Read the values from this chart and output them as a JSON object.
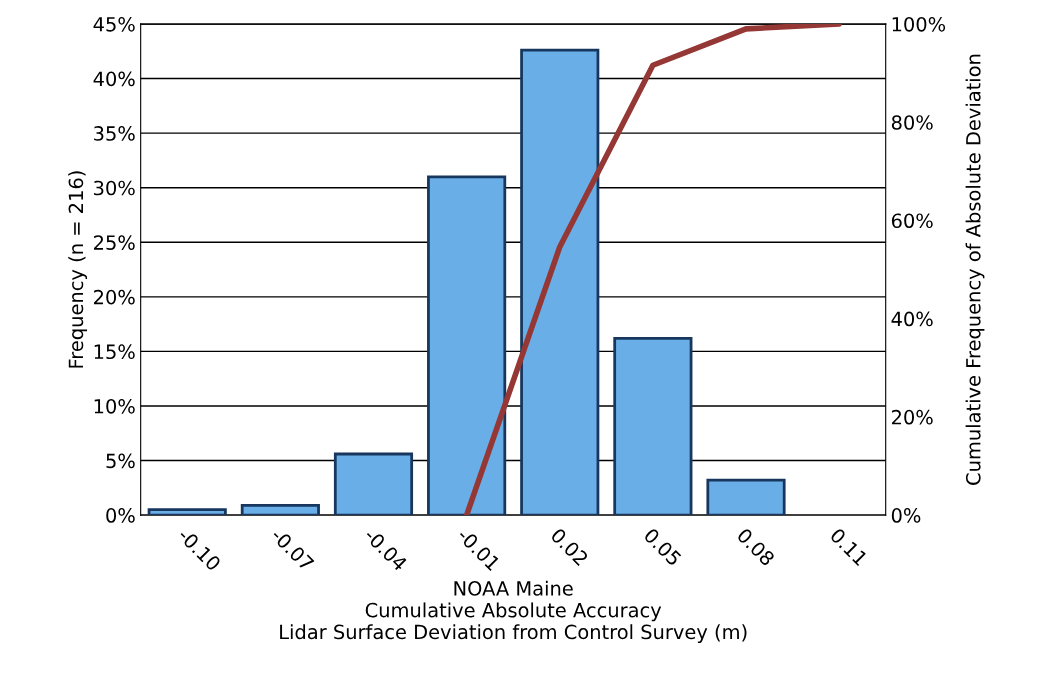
{
  "chart_data": {
    "type": "bar",
    "xlabel": "NOAA Maine\nCumulative Absolute Accuracy\nLidar Surface Deviation from Control Survey (m)",
    "ylabel": "Frequency (n = 216)",
    "y2label": "Cumulative Frequency of Absolute Deviation",
    "categories": [
      "-0.10",
      "-0.07",
      "-0.04",
      "-0.01",
      "0.02",
      "0.05",
      "0.08",
      "0.11"
    ],
    "series": [
      {
        "color": "#6aaee8",
        "values": [
          0.5,
          0.9,
          5.6,
          31.0,
          42.6,
          16.2,
          3.2,
          null
        ]
      },
      {
        "type": "line",
        "axis": "y2",
        "color": "#953735",
        "values": [
          null,
          null,
          null,
          0,
          54.6,
          91.6,
          99,
          100
        ]
      }
    ],
    "ylim": [
      0,
      45
    ],
    "yticks": [
      {
        "value": 0,
        "label": "0%"
      },
      {
        "value": 5,
        "label": "5%"
      },
      {
        "value": 10,
        "label": "10%"
      },
      {
        "value": 15,
        "label": "15%"
      },
      {
        "value": 20,
        "label": "20%"
      },
      {
        "value": 25,
        "label": "25%"
      },
      {
        "value": 30,
        "label": "30%"
      },
      {
        "value": 35,
        "label": "35%"
      },
      {
        "value": 40,
        "label": "40%"
      },
      {
        "value": 45,
        "label": "45%"
      }
    ],
    "y2lim": [
      0,
      100
    ],
    "y2ticks": [
      {
        "value": 0,
        "label": "0%"
      },
      {
        "value": 20,
        "label": "20%"
      },
      {
        "value": 40,
        "label": "40%"
      },
      {
        "value": 60,
        "label": "60%"
      },
      {
        "value": 80,
        "label": "80%"
      },
      {
        "value": 100,
        "label": "100%"
      }
    ],
    "grid": "y",
    "legend": false,
    "marker": "none"
  }
}
